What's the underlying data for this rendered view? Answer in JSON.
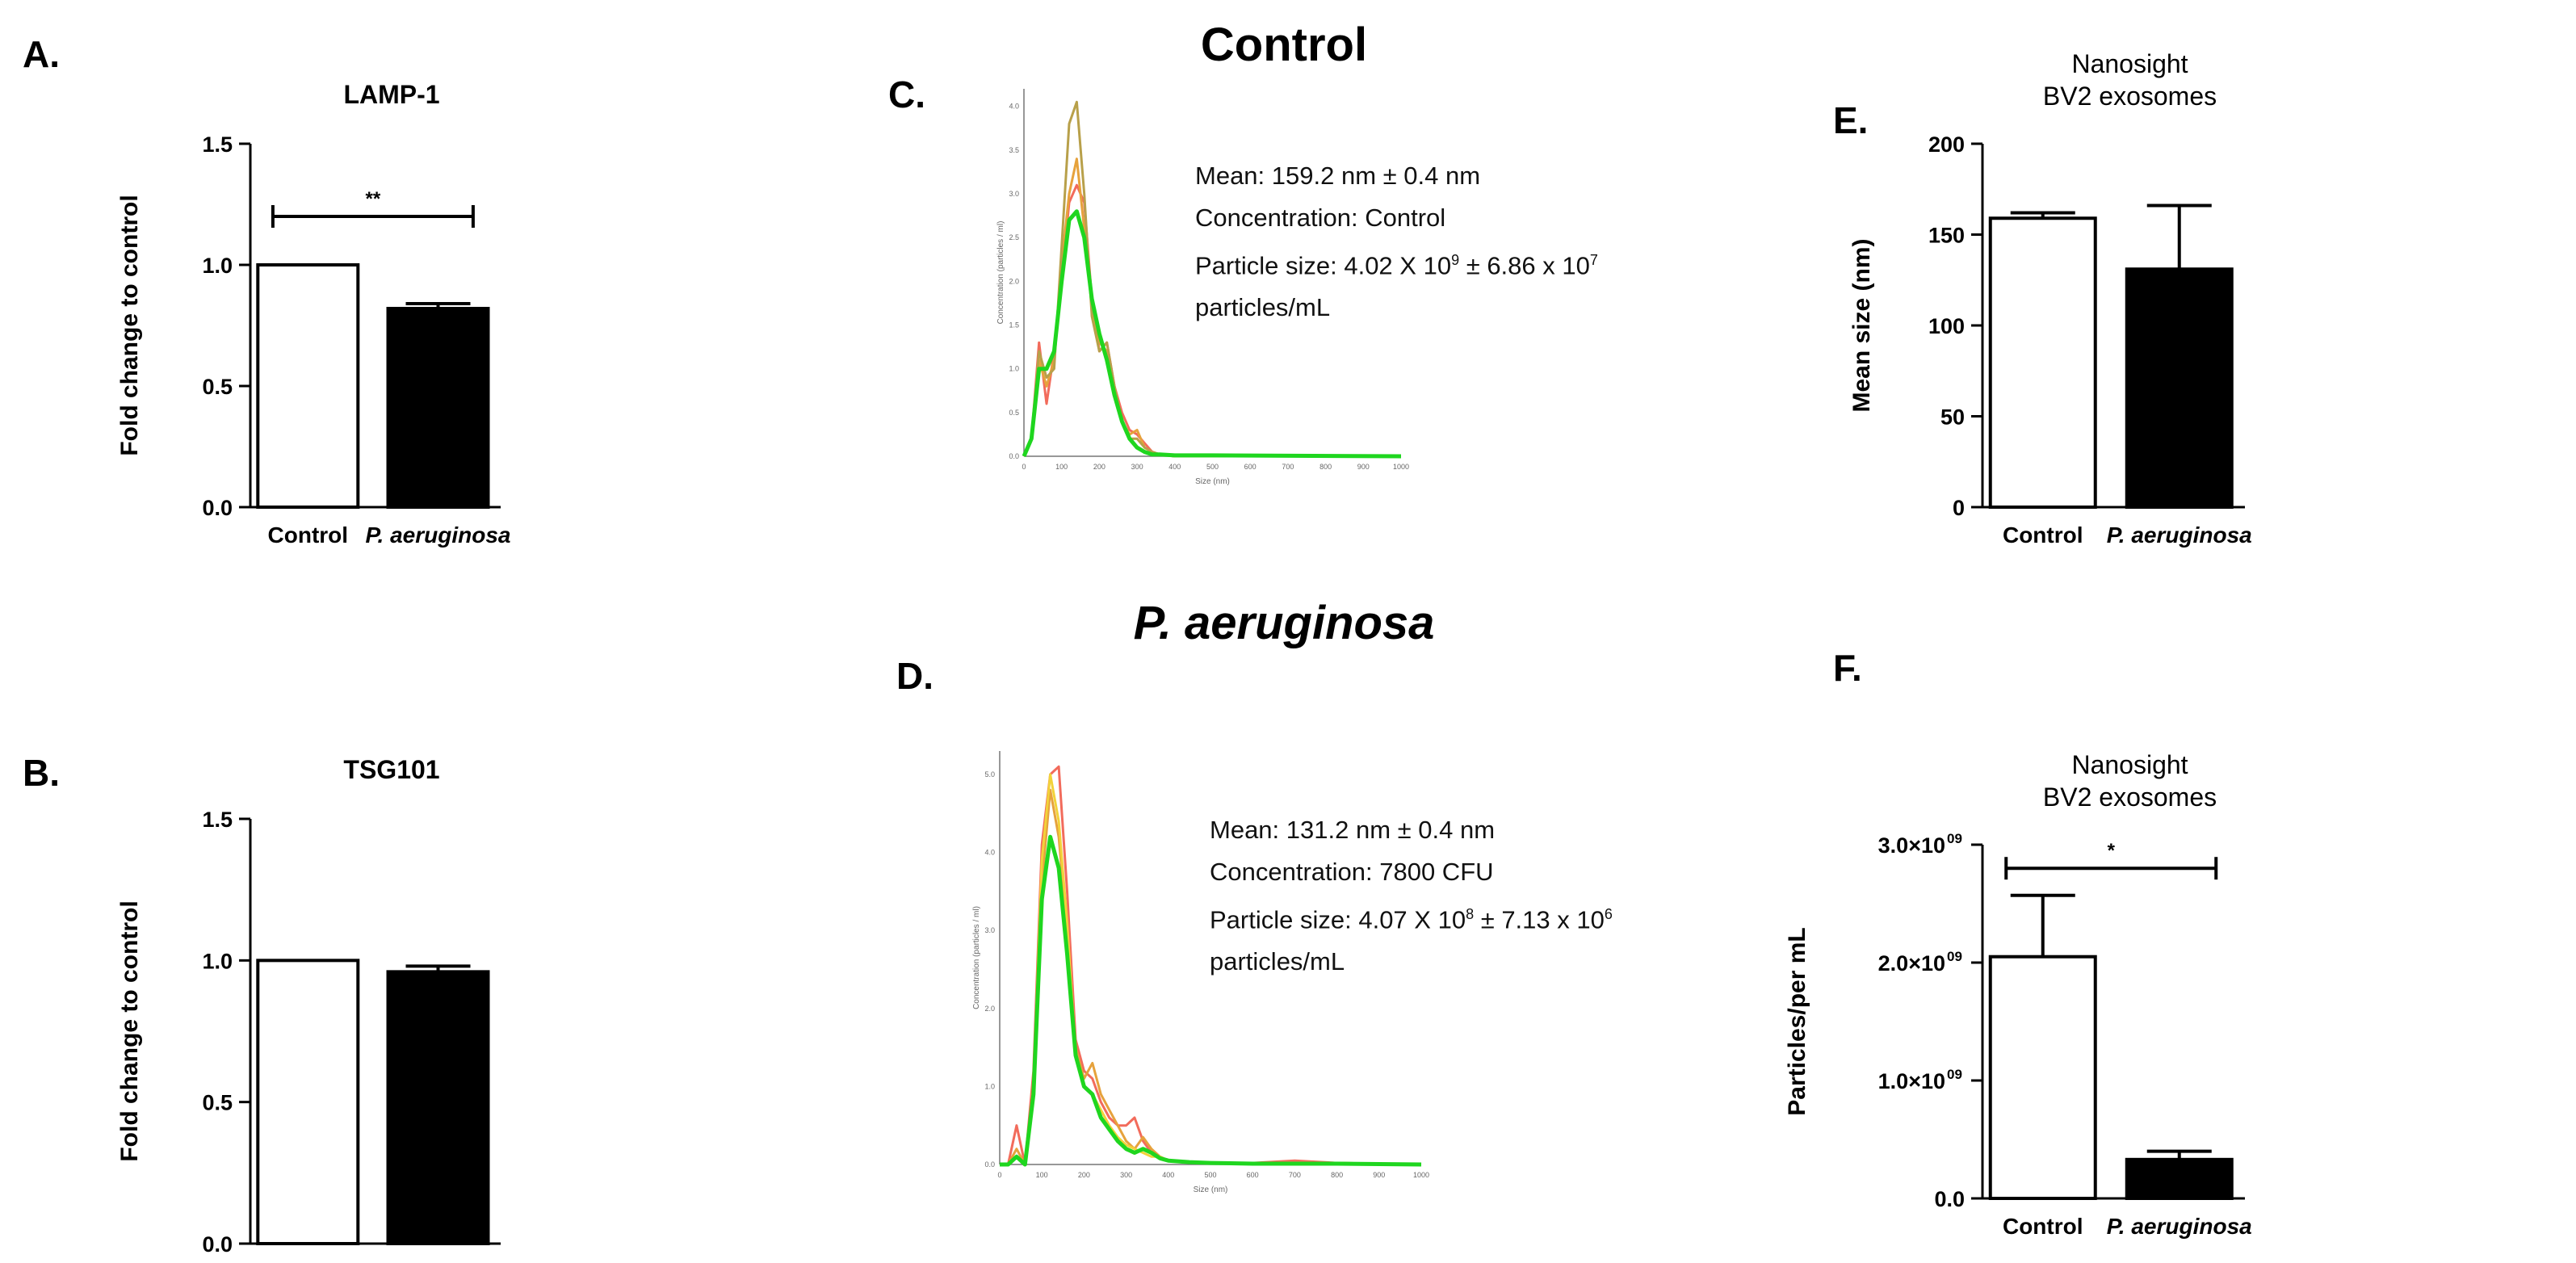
{
  "colors": {
    "bar_control": "#ffffff",
    "bar_pa": "#000000",
    "curve_red": "#f26b5b",
    "curve_orange": "#e6a23c",
    "curve_yellow": "#f2d23a",
    "curve_olive": "#b8a04a",
    "curve_green": "#1fd61f"
  },
  "panels": {
    "A": {
      "letter": "A."
    },
    "B": {
      "letter": "B."
    },
    "C": {
      "letter": "C.",
      "heading": "Control",
      "mean": "Mean: 159.2 nm ± 0.4 nm",
      "concentration": "Concentration: Control",
      "particle_size_base": "Particle size:  4.02 X 10",
      "particle_size_exp1": "9",
      "particle_size_mid": " ± 6.86 x 10",
      "particle_size_exp2": "7",
      "particle_size_unit": "particles/mL"
    },
    "D": {
      "letter": "D.",
      "heading": "P. aeruginosa",
      "mean": "Mean: 131.2 nm ± 0.4 nm",
      "concentration": "Concentration: 7800 CFU",
      "particle_size_base": "Particle size:  4.07 X 10",
      "particle_size_exp1": "8",
      "particle_size_mid": " ± 7.13 x 10",
      "particle_size_exp2": "6",
      "particle_size_unit": "particles/mL"
    },
    "E": {
      "letter": "E."
    },
    "F": {
      "letter": "F."
    }
  },
  "chart_data": [
    {
      "id": "A",
      "type": "bar",
      "title": "LAMP-1",
      "ylabel": "Fold change to control",
      "categories": [
        "Control",
        "P. aeruginosa"
      ],
      "values": [
        1.0,
        0.82
      ],
      "errors": [
        0,
        0.02
      ],
      "ylim": [
        0,
        1.5
      ],
      "ticks": [
        0.0,
        0.5,
        1.0,
        1.5
      ],
      "tick_labels": [
        "0.0",
        "0.5",
        "1.0",
        "1.5"
      ],
      "significance": {
        "label": "**",
        "y": 1.2
      }
    },
    {
      "id": "B",
      "type": "bar",
      "title": "TSG101",
      "ylabel": "Fold change to control",
      "categories": [
        "Control",
        "P. aeruginosa"
      ],
      "values": [
        1.0,
        0.96
      ],
      "errors": [
        0,
        0.02
      ],
      "ylim": [
        0,
        1.5
      ],
      "ticks": [
        0.0,
        0.5,
        1.0,
        1.5
      ],
      "tick_labels": [
        "0.0",
        "0.5",
        "1.0",
        "1.5"
      ]
    },
    {
      "id": "E",
      "type": "bar",
      "title": "Nanosight BV2 exosomes",
      "title_lines": [
        "Nanosight",
        "BV2 exosomes"
      ],
      "ylabel": "Mean size (nm)",
      "categories": [
        "Control",
        "P. aeruginosa"
      ],
      "values": [
        159,
        131
      ],
      "errors": [
        3,
        35
      ],
      "ylim": [
        0,
        200
      ],
      "ticks": [
        0,
        50,
        100,
        150,
        200
      ],
      "tick_labels": [
        "0",
        "50",
        "100",
        "150",
        "200"
      ]
    },
    {
      "id": "F",
      "type": "bar",
      "title": "Nanosight BV2 exosomes",
      "title_lines": [
        "Nanosight",
        "BV2 exosomes"
      ],
      "ylabel": "Particles/per mL",
      "categories": [
        "Control",
        "P. aeruginosa"
      ],
      "values": [
        2050000000.0,
        330000000.0
      ],
      "errors": [
        520000000.0,
        70000000.0
      ],
      "ylim": [
        0,
        3000000000.0
      ],
      "ticks": [
        0,
        1000000000.0,
        2000000000.0,
        3000000000.0
      ],
      "tick_labels": [
        "0.0",
        "1.0×10",
        "2.0×10",
        "3.0×10"
      ],
      "tick_exp": "09",
      "significance": {
        "label": "*",
        "y": 2800000000.0
      }
    },
    {
      "id": "C",
      "type": "line",
      "title": "Control",
      "xlabel": "Size (nm)",
      "ylabel": "Concentration (particles / ml)",
      "xlim": [
        0,
        1000
      ],
      "ylim": [
        0,
        4.2
      ],
      "x_ticks": [
        0,
        100,
        200,
        300,
        400,
        500,
        600,
        700,
        800,
        900,
        1000
      ],
      "y_ticks": [
        0,
        0.5,
        1.0,
        1.5,
        2.0,
        2.5,
        3.0,
        3.5,
        4.0
      ],
      "series": [
        {
          "name": "run-red",
          "color": "#f26b5b",
          "x": [
            0,
            20,
            40,
            60,
            80,
            100,
            120,
            140,
            160,
            180,
            200,
            220,
            240,
            260,
            280,
            300,
            320,
            340,
            360,
            400,
            500,
            1000
          ],
          "y": [
            0,
            0.2,
            1.3,
            0.6,
            1.2,
            2.0,
            2.9,
            3.1,
            2.9,
            1.8,
            1.2,
            1.3,
            0.8,
            0.5,
            0.3,
            0.25,
            0.15,
            0.05,
            0.02,
            0,
            0,
            0
          ]
        },
        {
          "name": "run-orange",
          "color": "#e6a23c",
          "x": [
            0,
            20,
            40,
            60,
            80,
            100,
            120,
            140,
            160,
            180,
            200,
            220,
            240,
            260,
            280,
            300,
            320,
            340,
            360,
            400,
            500,
            1000
          ],
          "y": [
            0,
            0.2,
            1.1,
            0.8,
            1.1,
            2.2,
            3.0,
            3.4,
            2.6,
            1.7,
            1.3,
            1.2,
            0.7,
            0.4,
            0.25,
            0.3,
            0.1,
            0.05,
            0.02,
            0,
            0,
            0
          ]
        },
        {
          "name": "run-olive",
          "color": "#b8a04a",
          "x": [
            0,
            20,
            40,
            60,
            80,
            100,
            120,
            140,
            160,
            180,
            200,
            220,
            240,
            260,
            280,
            300,
            320,
            340,
            360,
            400,
            500,
            1000
          ],
          "y": [
            0,
            0.2,
            1.2,
            0.9,
            1.0,
            2.4,
            3.8,
            4.05,
            3.0,
            1.6,
            1.2,
            1.3,
            0.8,
            0.4,
            0.2,
            0.2,
            0.1,
            0.05,
            0.02,
            0,
            0,
            0
          ]
        },
        {
          "name": "run-green",
          "color": "#1fd61f",
          "x": [
            0,
            20,
            40,
            60,
            80,
            100,
            120,
            140,
            160,
            180,
            200,
            220,
            240,
            260,
            280,
            300,
            320,
            340,
            360,
            400,
            500,
            1000
          ],
          "y": [
            0,
            0.2,
            1.0,
            1.0,
            1.2,
            2.0,
            2.7,
            2.8,
            2.5,
            1.8,
            1.4,
            1.1,
            0.7,
            0.4,
            0.2,
            0.1,
            0.05,
            0.02,
            0.02,
            0.01,
            0.01,
            0
          ]
        }
      ]
    },
    {
      "id": "D",
      "type": "line",
      "title": "P. aeruginosa",
      "xlabel": "Size (nm)",
      "ylabel": "Concentration (particles / ml)",
      "xlim": [
        0,
        1000
      ],
      "ylim": [
        0,
        5.3
      ],
      "x_ticks": [
        0,
        100,
        200,
        300,
        400,
        500,
        600,
        700,
        800,
        900,
        1000
      ],
      "y_ticks": [
        0,
        1.0,
        2.0,
        3.0,
        4.0,
        5.0
      ],
      "series": [
        {
          "name": "run-red",
          "color": "#f26b5b",
          "x": [
            0,
            20,
            40,
            60,
            80,
            100,
            120,
            140,
            160,
            180,
            200,
            220,
            240,
            260,
            280,
            300,
            320,
            340,
            360,
            380,
            400,
            450,
            500,
            600,
            700,
            800,
            1000
          ],
          "y": [
            0,
            0,
            0.5,
            0,
            1.2,
            4.1,
            5.0,
            5.1,
            3.5,
            1.6,
            1.2,
            1.1,
            0.8,
            0.6,
            0.5,
            0.5,
            0.6,
            0.3,
            0.15,
            0.1,
            0.05,
            0.03,
            0.02,
            0.02,
            0.05,
            0.02,
            0
          ]
        },
        {
          "name": "run-orange",
          "color": "#e6a23c",
          "x": [
            0,
            20,
            40,
            60,
            80,
            100,
            120,
            140,
            160,
            180,
            200,
            220,
            240,
            260,
            280,
            300,
            320,
            340,
            360,
            380,
            400,
            450,
            500,
            600,
            700,
            800,
            1000
          ],
          "y": [
            0,
            0,
            0.2,
            0,
            1.0,
            3.6,
            4.8,
            4.2,
            3.0,
            1.5,
            1.1,
            1.3,
            0.9,
            0.7,
            0.5,
            0.3,
            0.2,
            0.35,
            0.2,
            0.1,
            0.05,
            0.03,
            0.02,
            0.02,
            0.02,
            0.02,
            0
          ]
        },
        {
          "name": "run-yellow",
          "color": "#f2d23a",
          "x": [
            0,
            20,
            40,
            60,
            80,
            100,
            120,
            140,
            160,
            180,
            200,
            220,
            240,
            260,
            280,
            300,
            320,
            340,
            360,
            380,
            400,
            450,
            500,
            600,
            700,
            800,
            1000
          ],
          "y": [
            0,
            0,
            0.1,
            0,
            1.0,
            3.9,
            5.0,
            4.4,
            3.1,
            1.4,
            1.0,
            0.9,
            0.7,
            0.5,
            0.35,
            0.25,
            0.2,
            0.15,
            0.1,
            0.1,
            0.05,
            0.03,
            0.02,
            0.02,
            0.02,
            0.02,
            0
          ]
        },
        {
          "name": "run-green",
          "color": "#1fd61f",
          "x": [
            0,
            20,
            40,
            60,
            80,
            100,
            120,
            140,
            160,
            180,
            200,
            220,
            240,
            260,
            280,
            300,
            320,
            340,
            360,
            380,
            400,
            450,
            500,
            600,
            700,
            800,
            1000
          ],
          "y": [
            0,
            0,
            0.1,
            0,
            0.9,
            3.4,
            4.2,
            3.8,
            2.7,
            1.4,
            1.0,
            0.9,
            0.6,
            0.45,
            0.3,
            0.2,
            0.15,
            0.2,
            0.15,
            0.08,
            0.05,
            0.03,
            0.02,
            0.01,
            0.01,
            0.01,
            0
          ]
        }
      ]
    }
  ]
}
